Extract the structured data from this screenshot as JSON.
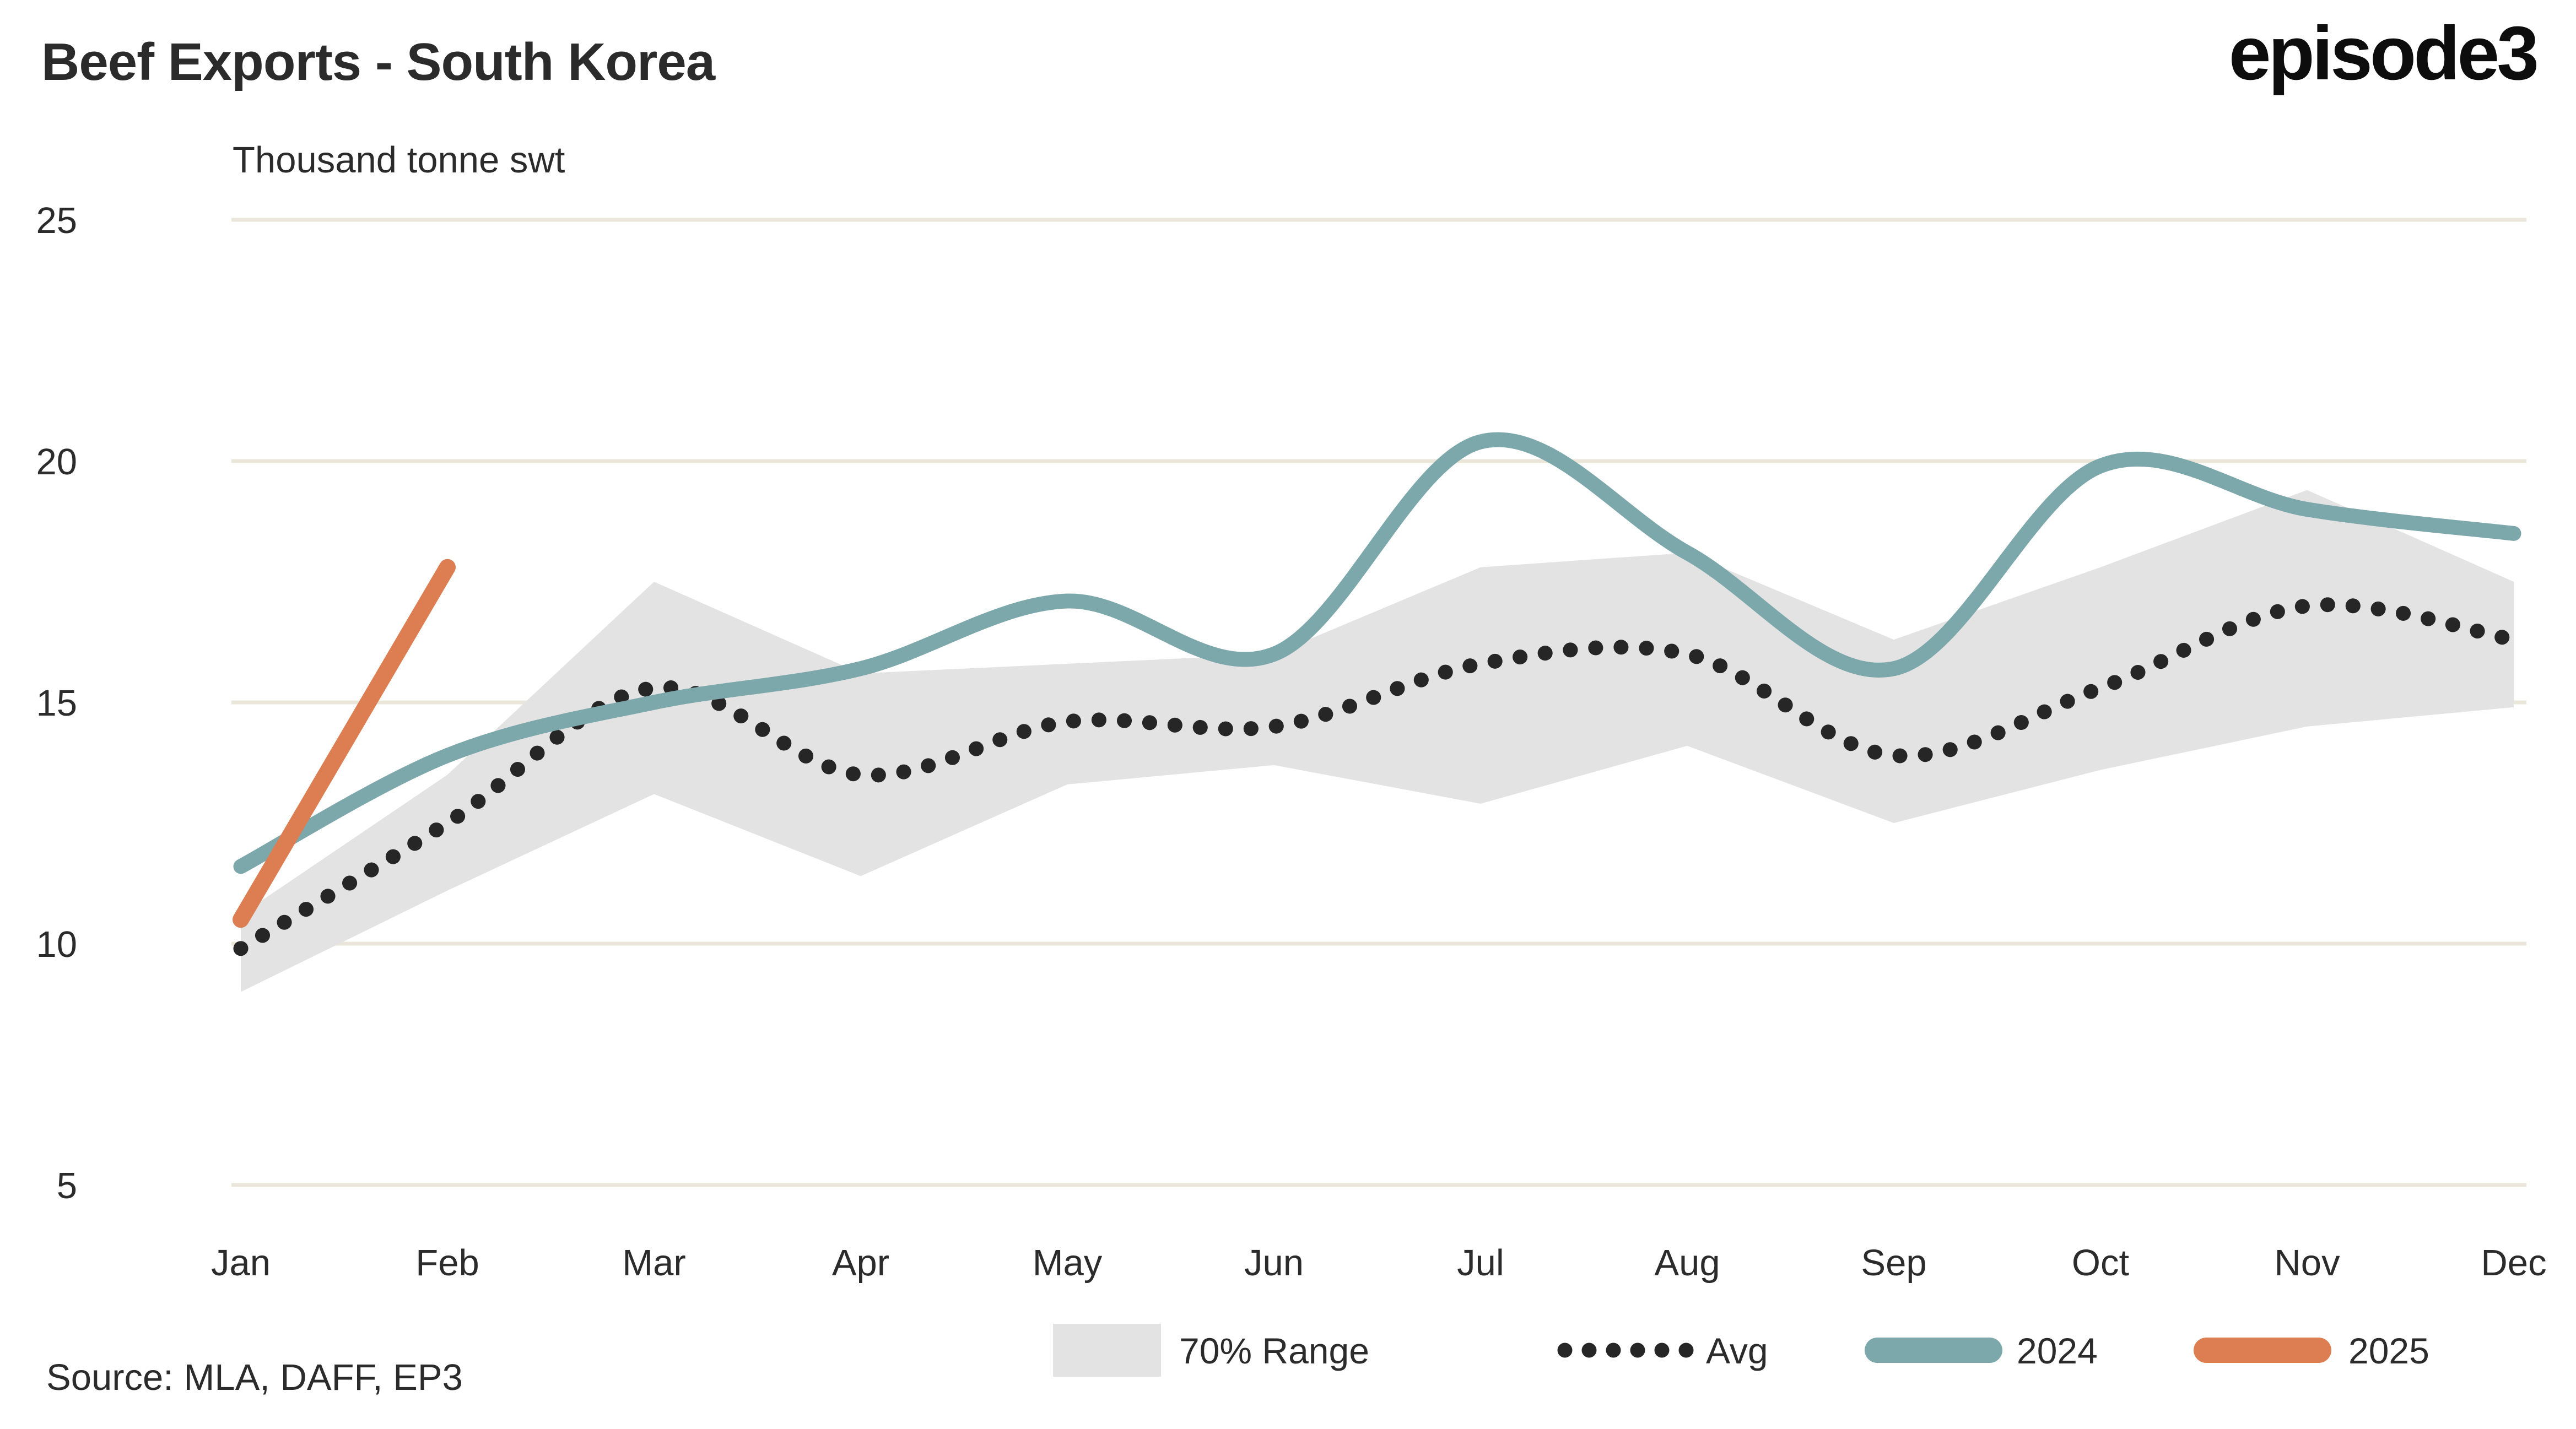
{
  "header": {
    "title": "Beef Exports - South Korea",
    "subtitle": "Thousand tonne swt",
    "logo": "episode3"
  },
  "footer": {
    "source": "Source: MLA, DAFF, EP3"
  },
  "colors": {
    "background": "#ffffff",
    "gridline": "#eae7da",
    "text": "#2b2b2b",
    "band": "#e3e3e3",
    "avg": "#262626",
    "line_2024": "#7ca7ab",
    "line_2025": "#dc7e51"
  },
  "chart_data": {
    "type": "line",
    "title": "Beef Exports - South Korea",
    "ylabel": "Thousand tonne swt",
    "xlabel": "",
    "categories": [
      "Jan",
      "Feb",
      "Mar",
      "Apr",
      "May",
      "Jun",
      "Jul",
      "Aug",
      "Sep",
      "Oct",
      "Nov",
      "Dec"
    ],
    "ylim": [
      5,
      25
    ],
    "yticks": [
      5,
      10,
      15,
      20,
      25
    ],
    "grid": "horizontal",
    "legend_position": "bottom",
    "series": [
      {
        "name": "70% Range",
        "type": "band",
        "color": "#e3e3e3",
        "upper": [
          10.6,
          13.5,
          17.5,
          15.6,
          15.8,
          16.0,
          17.8,
          18.1,
          16.3,
          17.8,
          19.4,
          17.5
        ],
        "lower": [
          9.0,
          11.1,
          13.1,
          11.4,
          13.3,
          13.7,
          12.9,
          14.1,
          12.5,
          13.6,
          14.5,
          14.9
        ]
      },
      {
        "name": "Avg",
        "type": "dotted-line",
        "color": "#262626",
        "values": [
          9.9,
          12.5,
          15.3,
          13.5,
          14.6,
          14.5,
          15.8,
          16.0,
          13.9,
          15.3,
          17.0,
          16.3
        ]
      },
      {
        "name": "2024",
        "type": "line",
        "color": "#7ca7ab",
        "values": [
          11.6,
          13.9,
          15.0,
          15.7,
          17.1,
          16.0,
          20.4,
          18.1,
          15.7,
          19.9,
          19.0,
          18.5
        ]
      },
      {
        "name": "2025",
        "type": "line",
        "color": "#dc7e51",
        "values": [
          10.5,
          17.8,
          null,
          null,
          null,
          null,
          null,
          null,
          null,
          null,
          null,
          null
        ]
      }
    ]
  }
}
